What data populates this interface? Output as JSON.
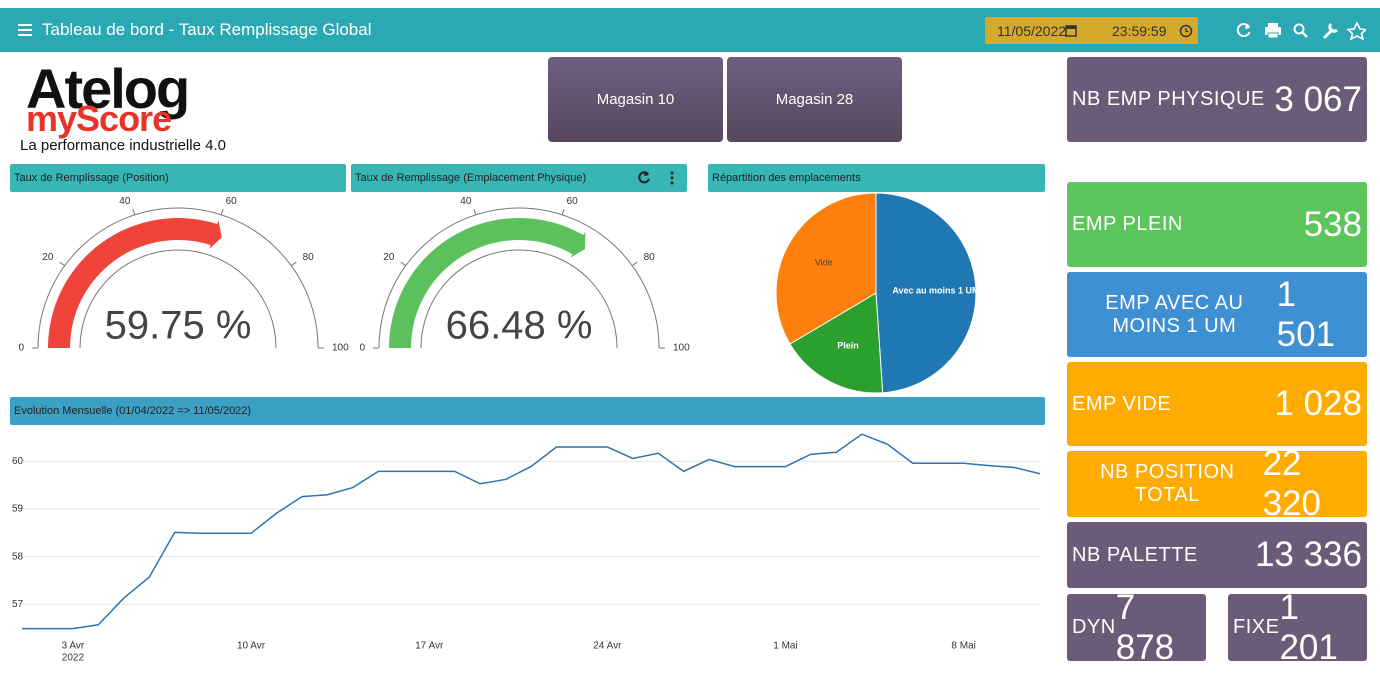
{
  "header": {
    "title": "Tableau de bord - Taux Remplissage Global",
    "date": "11/05/2022",
    "time": "23:59:59"
  },
  "logo": {
    "brand": "Atelog",
    "product": "myScore",
    "tagline": "La performance industrielle 4.0"
  },
  "buttons": [
    "Magasin 10",
    "Magasin 28"
  ],
  "chart_data": [
    {
      "type": "gauge",
      "title": "Taux de Remplissage (Position)",
      "value": 59.75,
      "value_label": "59.75 %",
      "range": [
        0,
        100
      ],
      "ticks": [
        0,
        20,
        40,
        60,
        80,
        100
      ],
      "color": "#f0433a"
    },
    {
      "type": "gauge",
      "title": "Taux de Remplissage (Emplacement Physique)",
      "value": 66.48,
      "value_label": "66.48 %",
      "range": [
        0,
        100
      ],
      "ticks": [
        0,
        20,
        40,
        60,
        80,
        100
      ],
      "color": "#5cc05c"
    },
    {
      "type": "pie",
      "title": "Répartition des emplacements",
      "categories": [
        "Avec au moins 1 UM",
        "Plein",
        "Vide"
      ],
      "values": [
        1501,
        538,
        1028
      ],
      "colors": [
        "#1f77b4",
        "#2ca02c",
        "#ff7f0e"
      ],
      "label_colors": [
        "#ffffff",
        "#ffffff",
        "#444444"
      ]
    },
    {
      "type": "line",
      "title": "Evolution Mensuelle (01/04/2022 => 11/05/2022)",
      "color": "#2f74b0",
      "x": [
        "2022-04-01",
        "2022-04-02",
        "2022-04-03",
        "2022-04-04",
        "2022-04-05",
        "2022-04-06",
        "2022-04-07",
        "2022-04-08",
        "2022-04-09",
        "2022-04-10",
        "2022-04-11",
        "2022-04-12",
        "2022-04-13",
        "2022-04-14",
        "2022-04-15",
        "2022-04-16",
        "2022-04-17",
        "2022-04-18",
        "2022-04-19",
        "2022-04-20",
        "2022-04-21",
        "2022-04-22",
        "2022-04-23",
        "2022-04-24",
        "2022-04-25",
        "2022-04-26",
        "2022-04-27",
        "2022-04-28",
        "2022-04-29",
        "2022-04-30",
        "2022-05-01",
        "2022-05-02",
        "2022-05-03",
        "2022-05-04",
        "2022-05-05",
        "2022-05-06",
        "2022-05-07",
        "2022-05-08",
        "2022-05-09",
        "2022-05-10",
        "2022-05-11"
      ],
      "values": [
        56.49,
        56.49,
        56.49,
        56.57,
        57.13,
        57.57,
        58.51,
        58.49,
        58.49,
        58.49,
        58.91,
        59.26,
        59.3,
        59.45,
        59.79,
        59.79,
        59.79,
        59.79,
        59.53,
        59.62,
        59.89,
        60.3,
        60.3,
        60.3,
        60.06,
        60.17,
        59.79,
        60.04,
        59.89,
        59.89,
        59.89,
        60.15,
        60.19,
        60.57,
        60.36,
        59.96,
        59.96,
        59.96,
        59.91,
        59.87,
        59.74
      ],
      "xlim": [
        "2022-04-01",
        "2022-05-11"
      ],
      "xticks": [
        {
          "value": "2022-04-03",
          "label": "3 Avr"
        },
        {
          "value": "2022-04-10",
          "label": "10 Avr"
        },
        {
          "value": "2022-04-17",
          "label": "17 Avr"
        },
        {
          "value": "2022-04-24",
          "label": "24 Avr"
        },
        {
          "value": "2022-05-01",
          "label": "1 Mai"
        },
        {
          "value": "2022-05-08",
          "label": "8 Mai"
        }
      ],
      "year_label": "2022",
      "ylim": [
        56.25,
        60.7
      ],
      "yticks": [
        57,
        58,
        59,
        60
      ],
      "grid": true
    }
  ],
  "kpis": [
    {
      "label": "NB EMP PHYSIQUE",
      "value": 3067,
      "value_label": "3 067",
      "color": "#6b5b78"
    },
    {
      "label": "EMP PLEIN",
      "value": 538,
      "value_label": "538",
      "color": "#5cc55c"
    },
    {
      "label": "EMP AVEC AU MOINS 1 UM",
      "value": 1501,
      "value_label": "1 501",
      "color": "#3f8fd3"
    },
    {
      "label": "EMP VIDE",
      "value": 1028,
      "value_label": "1 028",
      "color": "#ffab00"
    },
    {
      "label": "NB POSITION TOTAL",
      "value": 22320,
      "value_label": "22 320",
      "color": "#ffab00"
    },
    {
      "label": "NB PALETTE",
      "value": 13336,
      "value_label": "13 336",
      "color": "#6b5b78"
    },
    {
      "label": "DYN",
      "value": 7878,
      "value_label": "7 878",
      "color": "#6b5b78"
    },
    {
      "label": "FIXE",
      "value": 1201,
      "value_label": "1 201",
      "color": "#6b5b78"
    }
  ]
}
